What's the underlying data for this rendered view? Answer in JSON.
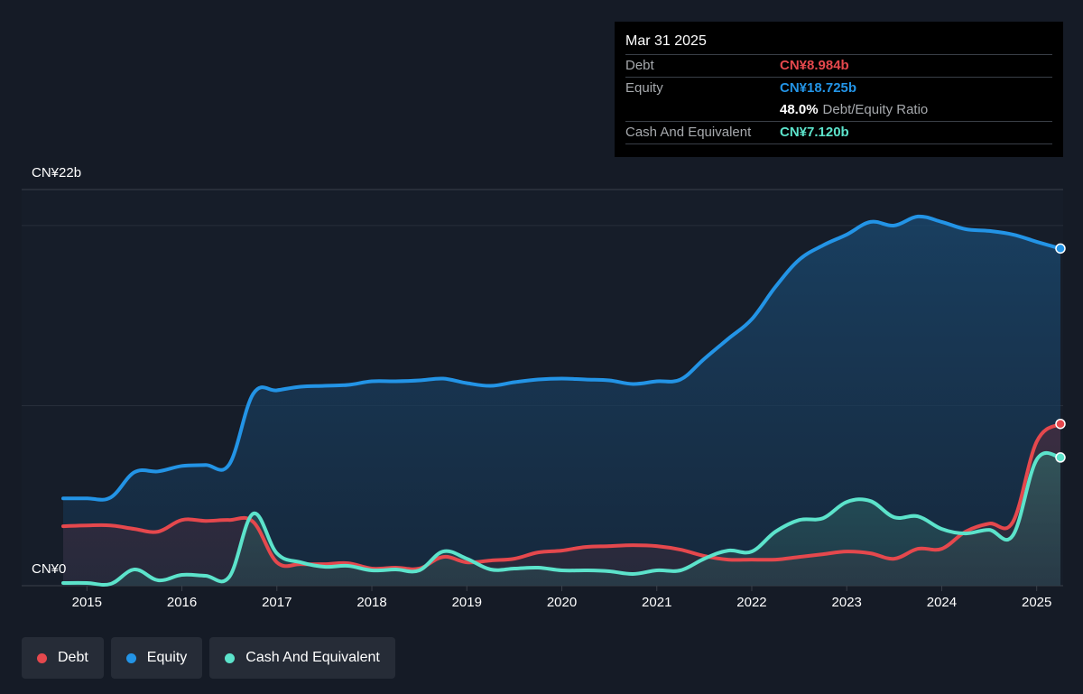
{
  "tooltip": {
    "date": "Mar 31 2025",
    "debt_label": "Debt",
    "debt_value": "CN¥8.984b",
    "equity_label": "Equity",
    "equity_value": "CN¥18.725b",
    "ratio_value": "48.0%",
    "ratio_label": "Debt/Equity Ratio",
    "cash_label": "Cash And Equivalent",
    "cash_value": "CN¥7.120b"
  },
  "legend": [
    {
      "label": "Debt",
      "color": "#e5484d"
    },
    {
      "label": "Equity",
      "color": "#2394e6"
    },
    {
      "label": "Cash And Equivalent",
      "color": "#5ce3cb"
    }
  ],
  "colors": {
    "debt": "#e5484d",
    "equity": "#2394e6",
    "cash": "#5ce3cb",
    "background": "#151b26"
  },
  "chart_data": {
    "type": "area",
    "y_top_label": "CN¥22b",
    "y_bottom_label": "CN¥0",
    "ylim": [
      0,
      22
    ],
    "xlim": [
      2014.75,
      2025.25
    ],
    "x_ticks": [
      "2015",
      "2016",
      "2017",
      "2018",
      "2019",
      "2020",
      "2021",
      "2022",
      "2023",
      "2024",
      "2025"
    ],
    "x_tick_values": [
      2015,
      2016,
      2017,
      2018,
      2019,
      2020,
      2021,
      2022,
      2023,
      2024,
      2025
    ],
    "series": [
      {
        "name": "Equity",
        "x": [
          2014.75,
          2015.0,
          2015.25,
          2015.5,
          2015.75,
          2016.0,
          2016.25,
          2016.5,
          2016.75,
          2017.0,
          2017.25,
          2017.5,
          2017.75,
          2018.0,
          2018.25,
          2018.5,
          2018.75,
          2019.0,
          2019.25,
          2019.5,
          2019.75,
          2020.0,
          2020.25,
          2020.5,
          2020.75,
          2021.0,
          2021.25,
          2021.5,
          2021.75,
          2022.0,
          2022.25,
          2022.5,
          2022.75,
          2023.0,
          2023.25,
          2023.5,
          2023.75,
          2024.0,
          2024.25,
          2024.5,
          2024.75,
          2025.0,
          2025.25
        ],
        "values": [
          4.85,
          4.85,
          4.9,
          6.3,
          6.35,
          6.65,
          6.7,
          6.75,
          10.65,
          10.85,
          11.05,
          11.1,
          11.15,
          11.35,
          11.35,
          11.4,
          11.5,
          11.25,
          11.1,
          11.3,
          11.45,
          11.5,
          11.45,
          11.4,
          11.2,
          11.35,
          11.45,
          12.6,
          13.7,
          14.8,
          16.6,
          18.1,
          18.9,
          19.5,
          20.2,
          20.0,
          20.5,
          20.2,
          19.8,
          19.7,
          19.5,
          19.1,
          18.725
        ]
      },
      {
        "name": "Debt",
        "x": [
          2014.75,
          2015.0,
          2015.25,
          2015.5,
          2015.75,
          2016.0,
          2016.25,
          2016.5,
          2016.75,
          2017.0,
          2017.25,
          2017.5,
          2017.75,
          2018.0,
          2018.25,
          2018.5,
          2018.75,
          2019.0,
          2019.25,
          2019.5,
          2019.75,
          2020.0,
          2020.25,
          2020.5,
          2020.75,
          2021.0,
          2021.25,
          2021.5,
          2021.75,
          2022.0,
          2022.25,
          2022.5,
          2022.75,
          2023.0,
          2023.25,
          2023.5,
          2023.75,
          2024.0,
          2024.25,
          2024.5,
          2024.75,
          2025.0,
          2025.25
        ],
        "values": [
          3.3,
          3.35,
          3.35,
          3.15,
          3.0,
          3.65,
          3.6,
          3.65,
          3.55,
          1.3,
          1.2,
          1.2,
          1.25,
          0.95,
          1.0,
          0.95,
          1.6,
          1.3,
          1.4,
          1.5,
          1.85,
          1.95,
          2.15,
          2.2,
          2.25,
          2.2,
          2.0,
          1.65,
          1.45,
          1.45,
          1.45,
          1.6,
          1.75,
          1.9,
          1.8,
          1.5,
          2.05,
          2.05,
          3.0,
          3.45,
          3.55,
          8.0,
          8.984
        ]
      },
      {
        "name": "Cash And Equivalent",
        "x": [
          2014.75,
          2015.0,
          2015.25,
          2015.5,
          2015.75,
          2016.0,
          2016.25,
          2016.5,
          2016.75,
          2017.0,
          2017.25,
          2017.5,
          2017.75,
          2018.0,
          2018.25,
          2018.5,
          2018.75,
          2019.0,
          2019.25,
          2019.5,
          2019.75,
          2020.0,
          2020.25,
          2020.5,
          2020.75,
          2021.0,
          2021.25,
          2021.5,
          2021.75,
          2022.0,
          2022.25,
          2022.5,
          2022.75,
          2023.0,
          2023.25,
          2023.5,
          2023.75,
          2024.0,
          2024.25,
          2024.5,
          2024.75,
          2025.0,
          2025.25
        ],
        "values": [
          0.15,
          0.15,
          0.1,
          0.9,
          0.3,
          0.6,
          0.55,
          0.5,
          4.0,
          1.8,
          1.3,
          1.05,
          1.1,
          0.85,
          0.9,
          0.85,
          1.9,
          1.5,
          0.9,
          0.95,
          1.0,
          0.85,
          0.85,
          0.8,
          0.65,
          0.85,
          0.85,
          1.5,
          1.95,
          1.9,
          3.0,
          3.65,
          3.75,
          4.65,
          4.7,
          3.8,
          3.85,
          3.15,
          2.9,
          3.1,
          2.8,
          7.0,
          7.12
        ]
      }
    ]
  }
}
